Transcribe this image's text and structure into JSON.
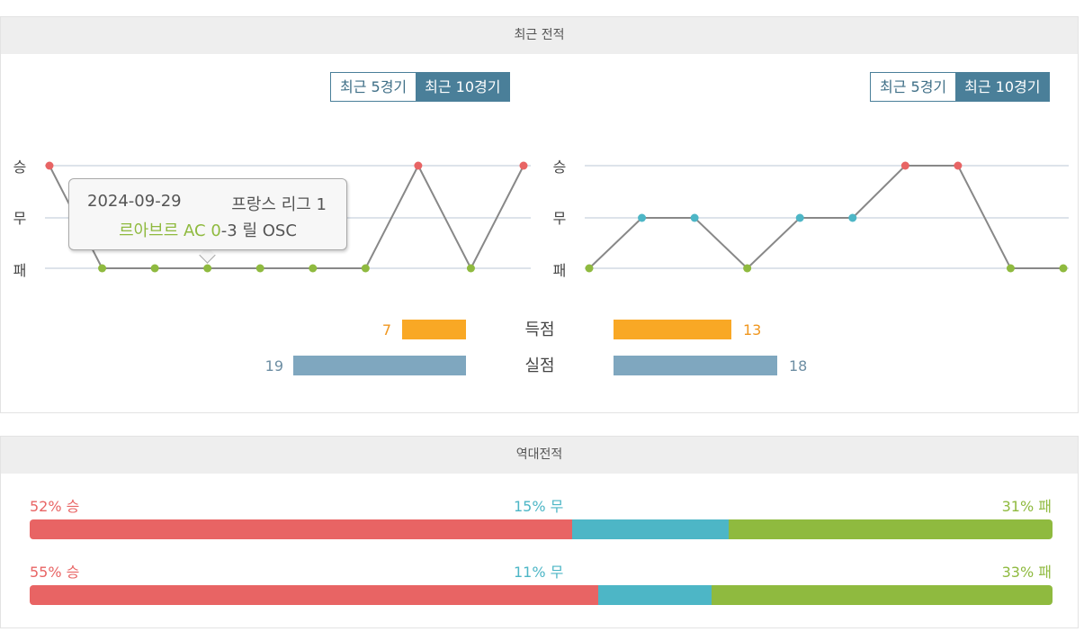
{
  "recent": {
    "title": "최근 전적",
    "tabs": {
      "five": "최근 5경기",
      "ten": "최근 10경기"
    },
    "y_labels": {
      "win": "승",
      "draw": "무",
      "loss": "패"
    },
    "left_results": [
      "W",
      "L",
      "L",
      "L",
      "L",
      "L",
      "L",
      "W",
      "L",
      "W"
    ],
    "right_results": [
      "L",
      "D",
      "D",
      "L",
      "D",
      "D",
      "W",
      "W",
      "L",
      "L"
    ],
    "tooltip": {
      "date": "2024-09-29",
      "league": "프랑스 리그 1",
      "home": "르아브르",
      "score_prefix": "AC 0",
      "score_suffix": "-3 릴 OSC"
    },
    "stats": {
      "scored_label": "득점",
      "conceded_label": "실점",
      "left_scored": "7",
      "right_scored": "13",
      "left_conceded": "19",
      "right_conceded": "18"
    }
  },
  "head_to_head": {
    "title": "역대전적",
    "rows": [
      {
        "win_label": "52% 승",
        "draw_label": "15% 무",
        "loss_label": "31% 패",
        "win": 52,
        "draw": 15,
        "loss": 31
      },
      {
        "win_label": "55% 승",
        "draw_label": "11% 무",
        "loss_label": "33% 패",
        "win": 55,
        "draw": 11,
        "loss": 33
      }
    ]
  },
  "colors": {
    "win": "#e86464",
    "draw": "#4db6c6",
    "loss": "#8fba3f",
    "line": "#888888",
    "scored_bar": "#f9a825",
    "conceded_bar": "#7fa7bf",
    "scored_text": "#f0961e",
    "conceded_text": "#6d8ea3",
    "tab_active": "#4a7f99"
  }
}
